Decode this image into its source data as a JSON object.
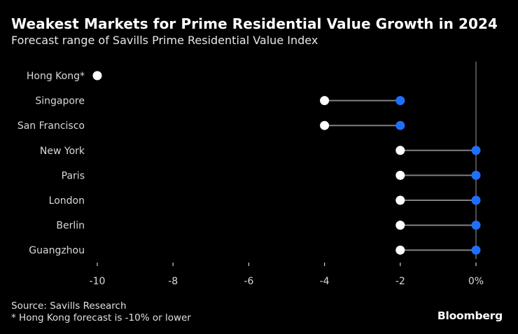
{
  "title": "Weakest Markets for Prime Residential Value Growth in 2024",
  "subtitle": "Forecast range of Savills Prime Residential Value Index",
  "source": "Source: Savills Research",
  "note": "* Hong Kong forecast is -10% or lower",
  "brand": "Bloomberg",
  "colors": {
    "background": "#000000",
    "low_marker": "#ffffff",
    "high_marker": "#1f6fff",
    "range_line": "#808080",
    "zero_line": "#808080"
  },
  "chart_data": {
    "type": "dumbbell",
    "orientation": "horizontal",
    "title": "Weakest Markets for Prime Residential Value Growth in 2024",
    "subtitle": "Forecast range of Savills Prime Residential Value Index",
    "xlim": [
      -10,
      0
    ],
    "x_ticks": [
      {
        "value": -10,
        "label": "-10"
      },
      {
        "value": -8,
        "label": "-8"
      },
      {
        "value": -6,
        "label": "-6"
      },
      {
        "value": -4,
        "label": "-4"
      },
      {
        "value": -2,
        "label": "-2"
      },
      {
        "value": 0,
        "label": "0%"
      }
    ],
    "grid": false,
    "legend": "none",
    "categories": [
      "Hong Kong*",
      "Singapore",
      "San Francisco",
      "New York",
      "Paris",
      "London",
      "Berlin",
      "Guangzhou"
    ],
    "series": [
      {
        "role": "low",
        "values": [
          -10,
          -4,
          -4,
          -2,
          -2,
          -2,
          -2,
          -2
        ]
      },
      {
        "role": "high",
        "values": [
          null,
          -2,
          -2,
          0,
          0,
          0,
          0,
          0
        ]
      }
    ]
  }
}
